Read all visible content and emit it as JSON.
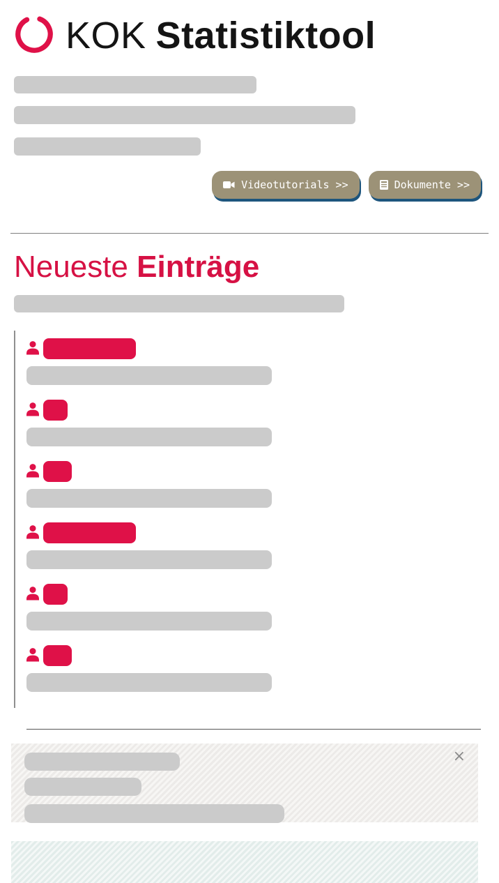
{
  "header": {
    "brand": "KOK",
    "product": "Statistiktool"
  },
  "toolbar": {
    "video_label": "Videotutorials >>",
    "docs_label": "Dokumente >>"
  },
  "intro": {
    "redacted_lines": 3
  },
  "section_heading": {
    "word_regular": "Neueste",
    "word_bold": "Einträge"
  },
  "entries": {
    "redacted": true,
    "items": [
      {
        "pill_width": 133
      },
      {
        "pill_width": 35
      },
      {
        "pill_width": 41
      },
      {
        "pill_width": 133
      },
      {
        "pill_width": 35
      },
      {
        "pill_width": 41
      }
    ]
  },
  "notice": {
    "redacted_lines": 3,
    "close": "×"
  },
  "colors": {
    "accent_red": "#df1148",
    "heading_red": "#d61144",
    "button_bg": "#9c9277",
    "button_shadow": "#1d557d",
    "placeholder_gray": "#cbcbcb"
  }
}
